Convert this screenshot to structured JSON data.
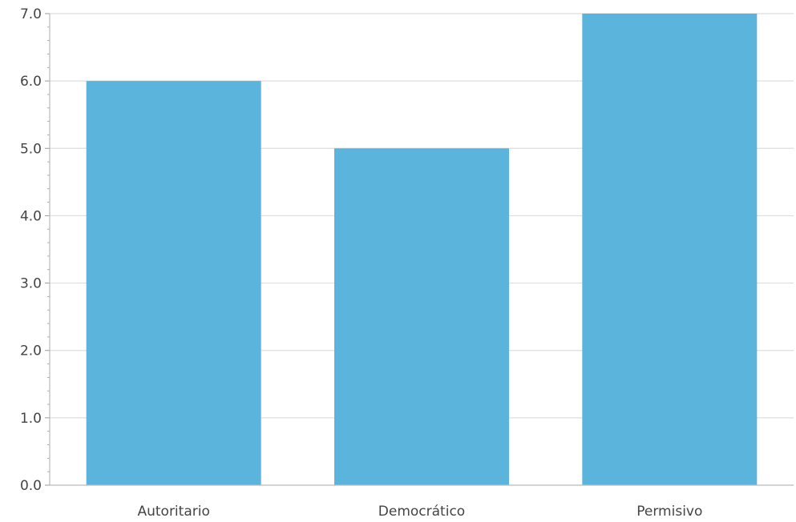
{
  "chart_data": {
    "type": "bar",
    "title": "",
    "xlabel": "",
    "ylabel": "",
    "categories": [
      "Autoritario",
      "Democrático",
      "Permisivo"
    ],
    "values": [
      6.0,
      5.0,
      7.0
    ],
    "ylim": [
      0,
      7
    ],
    "y_ticks": [
      "0.0",
      "1.0",
      "2.0",
      "3.0",
      "4.0",
      "5.0",
      "6.0",
      "7.0"
    ],
    "y_tick_values": [
      0,
      1,
      2,
      3,
      4,
      5,
      6,
      7
    ],
    "grid": true,
    "legend": "none"
  },
  "colors": {
    "bar": "#5ab4db",
    "grid": "#dddddd",
    "axis": "#bbbbbb",
    "tick": "#999999",
    "text": "#444444"
  }
}
